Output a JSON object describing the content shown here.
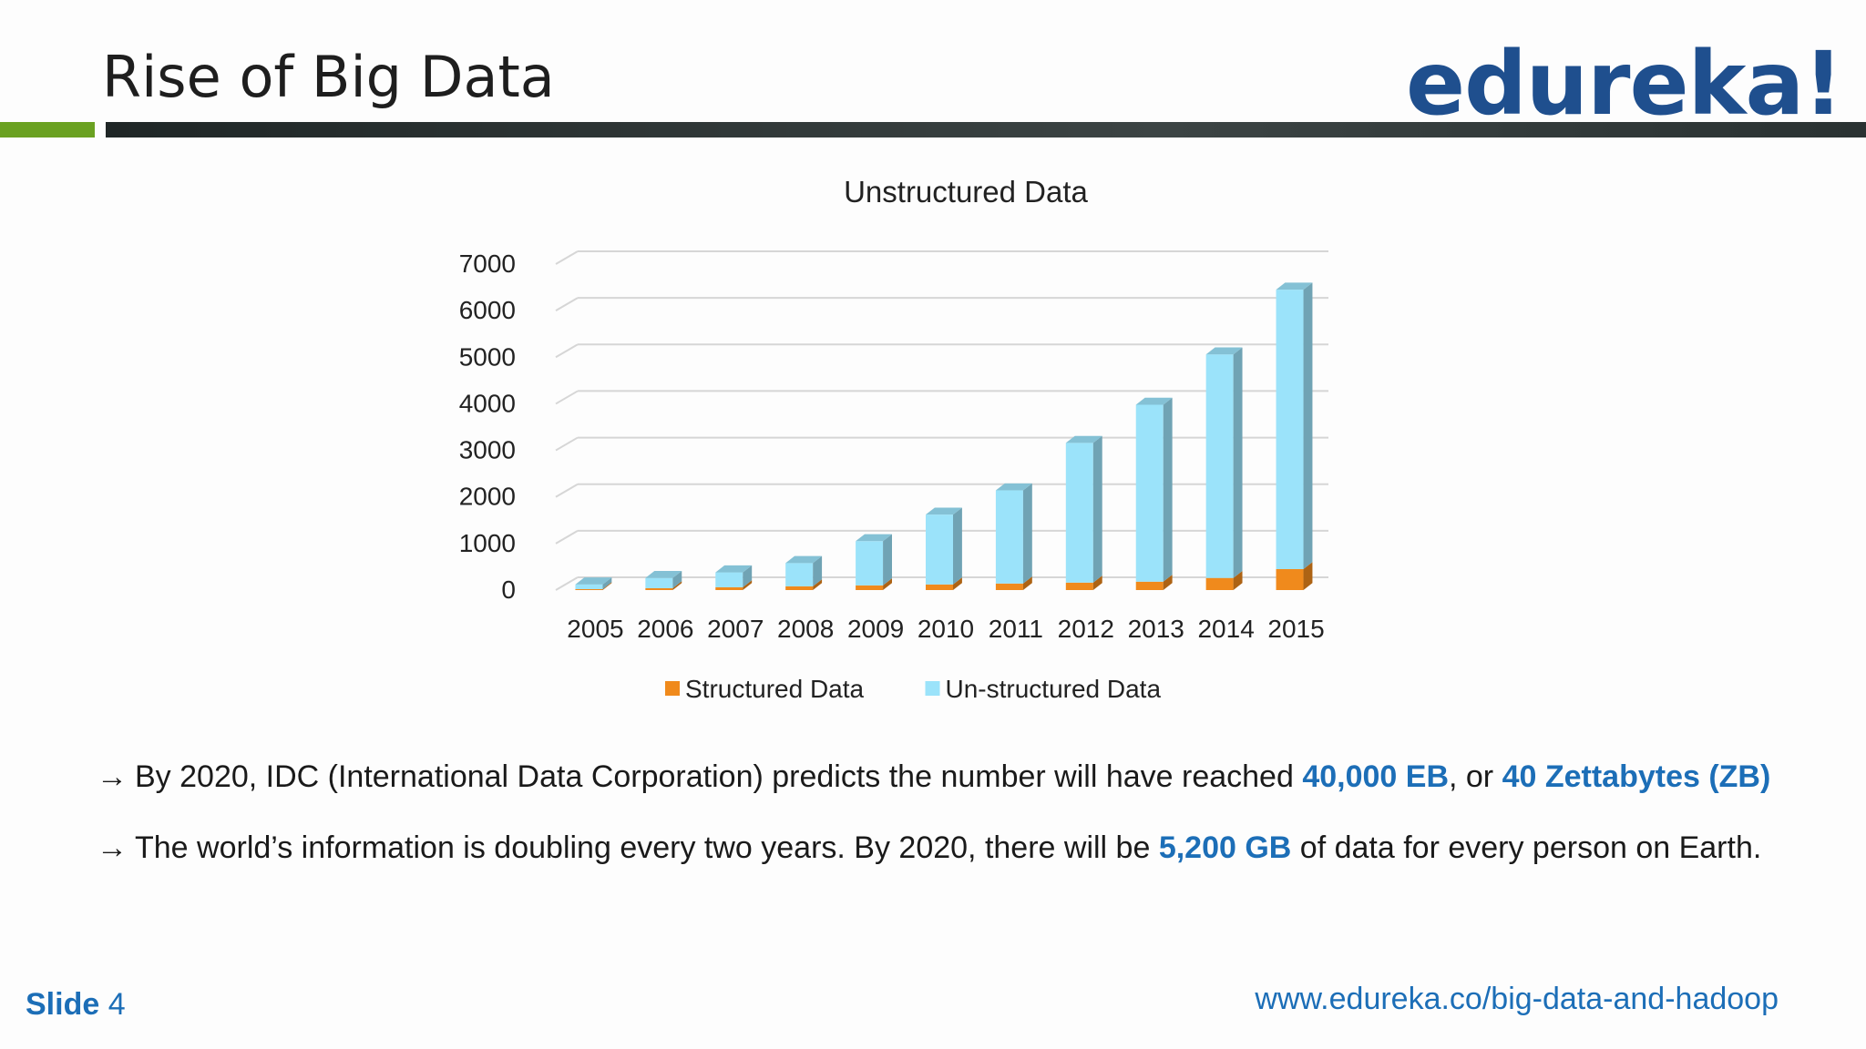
{
  "header": {
    "title": "Rise of Big Data",
    "logo_text": "edureka!"
  },
  "colors": {
    "accent_green": "#6aa121",
    "rule_dark": "#2f3636",
    "brand_blue": "#1f4f8e",
    "highlight_blue": "#1c6eb7",
    "structured": "#f08a1c",
    "unstructured": "#9be3fa"
  },
  "chart_data": {
    "type": "bar",
    "stacked": true,
    "three_d": true,
    "title": "Unstructured Data",
    "xlabel": "",
    "ylabel": "",
    "categories": [
      "2005",
      "2006",
      "2007",
      "2008",
      "2009",
      "2010",
      "2011",
      "2012",
      "2013",
      "2014",
      "2015"
    ],
    "series": [
      {
        "name": "Structured Data",
        "color": "#f08a1c",
        "values": [
          20,
          40,
          60,
          80,
          100,
          120,
          140,
          160,
          180,
          260,
          450
        ]
      },
      {
        "name": "Un-structured Data",
        "color": "#9be3fa",
        "values": [
          100,
          220,
          320,
          500,
          950,
          1500,
          2000,
          3000,
          3800,
          4800,
          6000
        ]
      }
    ],
    "ylim": [
      0,
      7000
    ],
    "yticks": [
      0,
      1000,
      2000,
      3000,
      4000,
      5000,
      6000,
      7000
    ],
    "grid": true,
    "legend": "bottom"
  },
  "bullets": [
    {
      "arrow": "→",
      "text_before": " By 2020, IDC (International Data Corporation) predicts the number will have reached  ",
      "highlight_1": "40,000 EB",
      "text_middle": ", or ",
      "highlight_2": "40 Zettabytes (ZB)",
      "text_after": ""
    },
    {
      "arrow": "→",
      "text_before": "The world’s information is doubling every two years.  By 2020, there will be ",
      "highlight_1": "5,200 GB",
      "text_after": " of data for every person on Earth."
    }
  ],
  "footer": {
    "slide_label": "Slide",
    "slide_number": "4",
    "url": "www.edureka.co/big-data-and-hadoop"
  }
}
